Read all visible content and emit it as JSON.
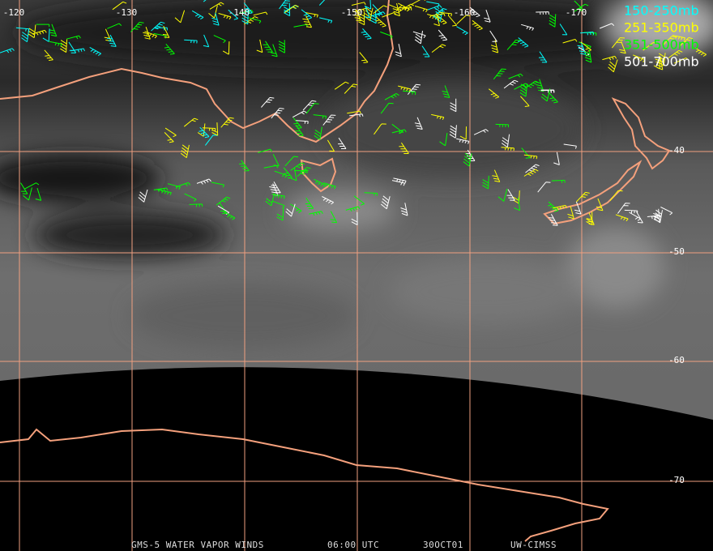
{
  "longitude_labels": [
    "-120",
    "-130",
    "-140",
    "-150",
    "-160",
    "-170"
  ],
  "latitude_labels": [
    "-40",
    "-50",
    "-60",
    "-70"
  ],
  "legend": [
    {
      "label": "150-250mb",
      "color": "#00ffff"
    },
    {
      "label": "251-350mb",
      "color": "#ffff00"
    },
    {
      "label": "351-500mb",
      "color": "#00ff00"
    },
    {
      "label": "501-700mb",
      "color": "#ffffff"
    }
  ],
  "footer": {
    "title": "GMS-5 WATER VAPOR WINDS",
    "time": "06:00 UTC",
    "date": "30OCT01",
    "source": "UW-CIMSS"
  }
}
